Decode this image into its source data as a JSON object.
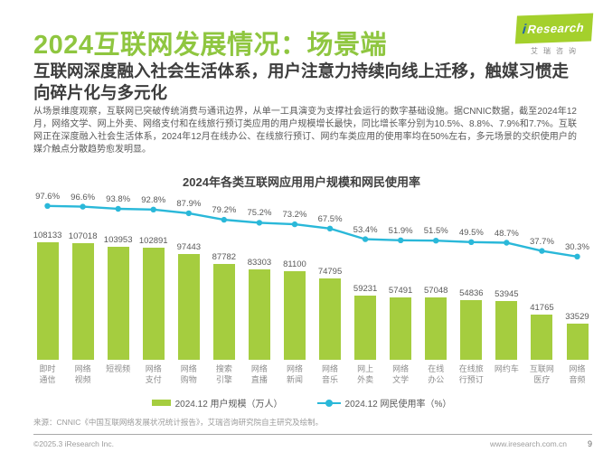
{
  "logo": {
    "mark_i": "i",
    "mark_rest": "Research",
    "subtitle_cn": "艾瑞咨询"
  },
  "header": {
    "title": "2024互联网发展情况：场景端",
    "subtitle": "互联网深度融入社会生活体系，用户注意力持续向线上迁移，触媒习惯走向碎片化与多元化",
    "body": "从场景维度观察，互联网已突破传统消费与通讯边界，从单一工具演变为支撑社会运行的数字基础设施。据CNNIC数据，截至2024年12月，网络文学、网上外卖、网络支付和在线旅行预订类应用的用户规模增长最快，同比增长率分别为10.5%、8.8%、7.9%和7.7%。互联网正在深度融入社会生活体系，2024年12月在线办公、在线旅行预订、网约车类应用的使用率均在50%左右，多元场景的交织使用户的媒介触点分散趋势愈发明显。"
  },
  "chart_data": {
    "type": "bar+line",
    "title": "2024年各类互联网应用用户规模和网民使用率",
    "categories": [
      "即时通信",
      "网络视频",
      "短视频",
      "网络支付",
      "网络购物",
      "搜索引擎",
      "网络直播",
      "网络新闻",
      "网络音乐",
      "网上外卖",
      "网络文学",
      "在线办公",
      "在线旅行预订",
      "网约车",
      "互联网医疗",
      "网络音频"
    ],
    "series": [
      {
        "name": "2024.12 用户规模（万人）",
        "type": "bar",
        "color": "#a5cd3f",
        "values": [
          108133,
          107018,
          103953,
          102891,
          97443,
          87782,
          83303,
          81100,
          74795,
          59231,
          57491,
          57048,
          54836,
          53945,
          41765,
          33529
        ]
      },
      {
        "name": "2024.12 网民使用率（%）",
        "type": "line",
        "color": "#2ab8d9",
        "values": [
          97.6,
          96.6,
          93.8,
          92.8,
          87.9,
          79.2,
          75.2,
          73.2,
          67.5,
          53.4,
          51.9,
          51.5,
          49.5,
          48.7,
          37.7,
          30.3
        ]
      }
    ],
    "ylabel_left": "用户规模（万人）",
    "ylabel_right": "网民使用率（%）",
    "grid": false,
    "legend_position": "bottom"
  },
  "footer": {
    "source": "来源：CNNIC《中国互联网络发展状况统计报告》，艾瑞咨询研究院自主研究及绘制。",
    "copyright": "©2025.3 iResearch Inc.",
    "website": "www.iresearch.com.cn",
    "page_number": "9"
  }
}
